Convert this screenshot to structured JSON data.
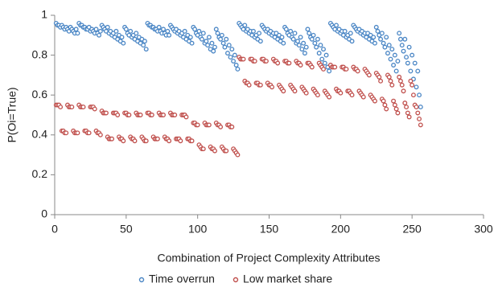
{
  "chart_data": {
    "type": "scatter",
    "xlabel": "Combination of Project Complexity Attributes",
    "ylabel": "P(Oi=True)",
    "xlim": [
      0,
      300
    ],
    "xticks": [
      0,
      50,
      100,
      150,
      200,
      250,
      300
    ],
    "ylim": [
      0,
      1
    ],
    "yticks": [
      0,
      0.2,
      0.4,
      0.6,
      0.8,
      1
    ],
    "grid": false,
    "legend": "bottom",
    "x": [
      1,
      2,
      3,
      4,
      5,
      6,
      7,
      8,
      9,
      10,
      11,
      12,
      13,
      14,
      15,
      16,
      17,
      18,
      19,
      20,
      21,
      22,
      23,
      24,
      25,
      26,
      27,
      28,
      29,
      30,
      31,
      32,
      33,
      34,
      35,
      36,
      37,
      38,
      39,
      40,
      41,
      42,
      43,
      44,
      45,
      46,
      47,
      48,
      49,
      50,
      51,
      52,
      53,
      54,
      55,
      56,
      57,
      58,
      59,
      60,
      61,
      62,
      63,
      64,
      65,
      66,
      67,
      68,
      69,
      70,
      71,
      72,
      73,
      74,
      75,
      76,
      77,
      78,
      79,
      80,
      81,
      82,
      83,
      84,
      85,
      86,
      87,
      88,
      89,
      90,
      91,
      92,
      93,
      94,
      95,
      96,
      97,
      98,
      99,
      100,
      101,
      102,
      103,
      104,
      105,
      106,
      107,
      108,
      109,
      110,
      111,
      112,
      113,
      114,
      115,
      116,
      117,
      118,
      119,
      120,
      121,
      122,
      123,
      124,
      125,
      126,
      127,
      128,
      129,
      130,
      131,
      132,
      133,
      134,
      135,
      136,
      137,
      138,
      139,
      140,
      141,
      142,
      143,
      144,
      145,
      146,
      147,
      148,
      149,
      150,
      151,
      152,
      153,
      154,
      155,
      156,
      157,
      158,
      159,
      160,
      161,
      162,
      163,
      164,
      165,
      166,
      167,
      168,
      169,
      170,
      171,
      172,
      173,
      174,
      175,
      176,
      177,
      178,
      179,
      180,
      181,
      182,
      183,
      184,
      185,
      186,
      187,
      188,
      189,
      190,
      191,
      192,
      193,
      194,
      195,
      196,
      197,
      198,
      199,
      200,
      201,
      202,
      203,
      204,
      205,
      206,
      207,
      208,
      209,
      210,
      211,
      212,
      213,
      214,
      215,
      216,
      217,
      218,
      219,
      220,
      221,
      222,
      223,
      224,
      225,
      226,
      227,
      228,
      229,
      230,
      231,
      232,
      233,
      234,
      235,
      236,
      237,
      238,
      239,
      240,
      241,
      242,
      243,
      244,
      245,
      246,
      247,
      248,
      249,
      250,
      251,
      252,
      253,
      254,
      255,
      256
    ],
    "series": [
      {
        "name": "Time overrun",
        "color": "#4a86c5",
        "values": [
          0.96,
          0.95,
          0.95,
          0.94,
          0.95,
          0.94,
          0.93,
          0.94,
          0.93,
          0.92,
          0.94,
          0.93,
          0.92,
          0.91,
          0.93,
          0.91,
          0.96,
          0.95,
          0.95,
          0.94,
          0.94,
          0.93,
          0.93,
          0.94,
          0.92,
          0.93,
          0.92,
          0.91,
          0.93,
          0.91,
          0.9,
          0.92,
          0.95,
          0.94,
          0.93,
          0.92,
          0.94,
          0.91,
          0.92,
          0.9,
          0.91,
          0.89,
          0.92,
          0.88,
          0.9,
          0.87,
          0.89,
          0.86,
          0.94,
          0.93,
          0.91,
          0.9,
          0.92,
          0.89,
          0.9,
          0.88,
          0.91,
          0.87,
          0.89,
          0.86,
          0.88,
          0.85,
          0.87,
          0.83,
          0.96,
          0.95,
          0.95,
          0.94,
          0.94,
          0.93,
          0.93,
          0.92,
          0.94,
          0.92,
          0.91,
          0.93,
          0.91,
          0.9,
          0.92,
          0.9,
          0.95,
          0.94,
          0.93,
          0.92,
          0.93,
          0.91,
          0.92,
          0.9,
          0.91,
          0.89,
          0.92,
          0.88,
          0.9,
          0.87,
          0.89,
          0.86,
          0.94,
          0.93,
          0.91,
          0.9,
          0.92,
          0.89,
          0.88,
          0.91,
          0.86,
          0.87,
          0.85,
          0.89,
          0.83,
          0.86,
          0.82,
          0.84,
          0.93,
          0.91,
          0.89,
          0.88,
          0.9,
          0.86,
          0.84,
          0.88,
          0.81,
          0.85,
          0.79,
          0.83,
          0.77,
          0.8,
          0.75,
          0.73,
          0.96,
          0.95,
          0.94,
          0.93,
          0.95,
          0.92,
          0.93,
          0.91,
          0.92,
          0.9,
          0.92,
          0.89,
          0.9,
          0.88,
          0.91,
          0.87,
          0.95,
          0.94,
          0.93,
          0.92,
          0.93,
          0.91,
          0.92,
          0.9,
          0.91,
          0.89,
          0.91,
          0.88,
          0.9,
          0.87,
          0.89,
          0.86,
          0.94,
          0.93,
          0.91,
          0.9,
          0.92,
          0.89,
          0.88,
          0.91,
          0.86,
          0.87,
          0.85,
          0.89,
          0.83,
          0.86,
          0.81,
          0.84,
          0.93,
          0.91,
          0.89,
          0.88,
          0.9,
          0.86,
          0.84,
          0.88,
          0.81,
          0.85,
          0.78,
          0.83,
          0.76,
          0.8,
          0.74,
          0.72,
          0.96,
          0.95,
          0.94,
          0.93,
          0.95,
          0.92,
          0.93,
          0.91,
          0.92,
          0.9,
          0.92,
          0.89,
          0.9,
          0.88,
          0.91,
          0.87,
          0.95,
          0.94,
          0.93,
          0.92,
          0.93,
          0.91,
          0.92,
          0.9,
          0.91,
          0.89,
          0.91,
          0.88,
          0.9,
          0.87,
          0.89,
          0.86,
          0.94,
          0.92,
          0.9,
          0.88,
          0.91,
          0.86,
          0.84,
          0.89,
          0.81,
          0.85,
          0.78,
          0.83,
          0.75,
          0.8,
          0.72,
          0.77,
          0.91,
          0.88,
          0.85,
          0.82,
          0.88,
          0.79,
          0.76,
          0.84,
          0.72,
          0.8,
          0.68,
          0.76,
          0.64,
          0.72,
          0.6,
          0.54
        ]
      },
      {
        "name": "Low market share",
        "color": "#c0504d",
        "values": [
          0.55,
          0.55,
          0.55,
          0.54,
          0.42,
          0.42,
          0.41,
          0.41,
          0.55,
          0.54,
          0.54,
          0.54,
          0.42,
          0.41,
          0.41,
          0.41,
          0.55,
          0.54,
          0.54,
          0.54,
          0.42,
          0.42,
          0.41,
          0.41,
          0.54,
          0.54,
          0.54,
          0.53,
          0.42,
          0.41,
          0.41,
          0.4,
          0.52,
          0.51,
          0.51,
          0.51,
          0.39,
          0.38,
          0.38,
          0.38,
          0.51,
          0.51,
          0.51,
          0.5,
          0.39,
          0.38,
          0.38,
          0.37,
          0.51,
          0.51,
          0.5,
          0.5,
          0.39,
          0.38,
          0.38,
          0.37,
          0.51,
          0.5,
          0.5,
          0.5,
          0.39,
          0.38,
          0.37,
          0.37,
          0.51,
          0.51,
          0.5,
          0.5,
          0.39,
          0.38,
          0.38,
          0.38,
          0.51,
          0.5,
          0.5,
          0.5,
          0.39,
          0.38,
          0.38,
          0.37,
          0.51,
          0.5,
          0.5,
          0.5,
          0.38,
          0.38,
          0.38,
          0.37,
          0.5,
          0.5,
          0.5,
          0.49,
          0.38,
          0.38,
          0.37,
          0.37,
          0.46,
          0.46,
          0.45,
          0.45,
          0.35,
          0.34,
          0.33,
          0.33,
          0.46,
          0.45,
          0.45,
          0.45,
          0.34,
          0.33,
          0.33,
          0.32,
          0.46,
          0.45,
          0.45,
          0.44,
          0.34,
          0.33,
          0.32,
          0.32,
          0.45,
          0.45,
          0.44,
          0.44,
          0.33,
          0.32,
          0.31,
          0.3,
          0.79,
          0.78,
          0.78,
          0.78,
          0.67,
          0.66,
          0.66,
          0.65,
          0.78,
          0.78,
          0.77,
          0.77,
          0.66,
          0.66,
          0.65,
          0.65,
          0.78,
          0.78,
          0.77,
          0.77,
          0.66,
          0.65,
          0.65,
          0.64,
          0.78,
          0.77,
          0.77,
          0.76,
          0.65,
          0.64,
          0.63,
          0.62,
          0.77,
          0.77,
          0.76,
          0.76,
          0.65,
          0.64,
          0.63,
          0.62,
          0.77,
          0.76,
          0.76,
          0.75,
          0.64,
          0.63,
          0.62,
          0.61,
          0.76,
          0.76,
          0.75,
          0.74,
          0.63,
          0.62,
          0.61,
          0.6,
          0.76,
          0.75,
          0.74,
          0.73,
          0.62,
          0.61,
          0.6,
          0.59,
          0.75,
          0.74,
          0.74,
          0.74,
          0.63,
          0.62,
          0.62,
          0.61,
          0.74,
          0.74,
          0.73,
          0.73,
          0.62,
          0.62,
          0.61,
          0.6,
          0.74,
          0.73,
          0.73,
          0.72,
          0.62,
          0.61,
          0.6,
          0.59,
          0.73,
          0.72,
          0.71,
          0.7,
          0.6,
          0.59,
          0.58,
          0.57,
          0.71,
          0.7,
          0.69,
          0.67,
          0.58,
          0.57,
          0.55,
          0.53,
          0.7,
          0.69,
          0.67,
          0.65,
          0.57,
          0.55,
          0.53,
          0.51,
          0.69,
          0.67,
          0.65,
          0.62,
          0.56,
          0.54,
          0.51,
          0.49,
          0.67,
          0.65,
          0.6,
          0.55,
          0.54,
          0.51,
          0.48,
          0.45
        ]
      }
    ]
  }
}
